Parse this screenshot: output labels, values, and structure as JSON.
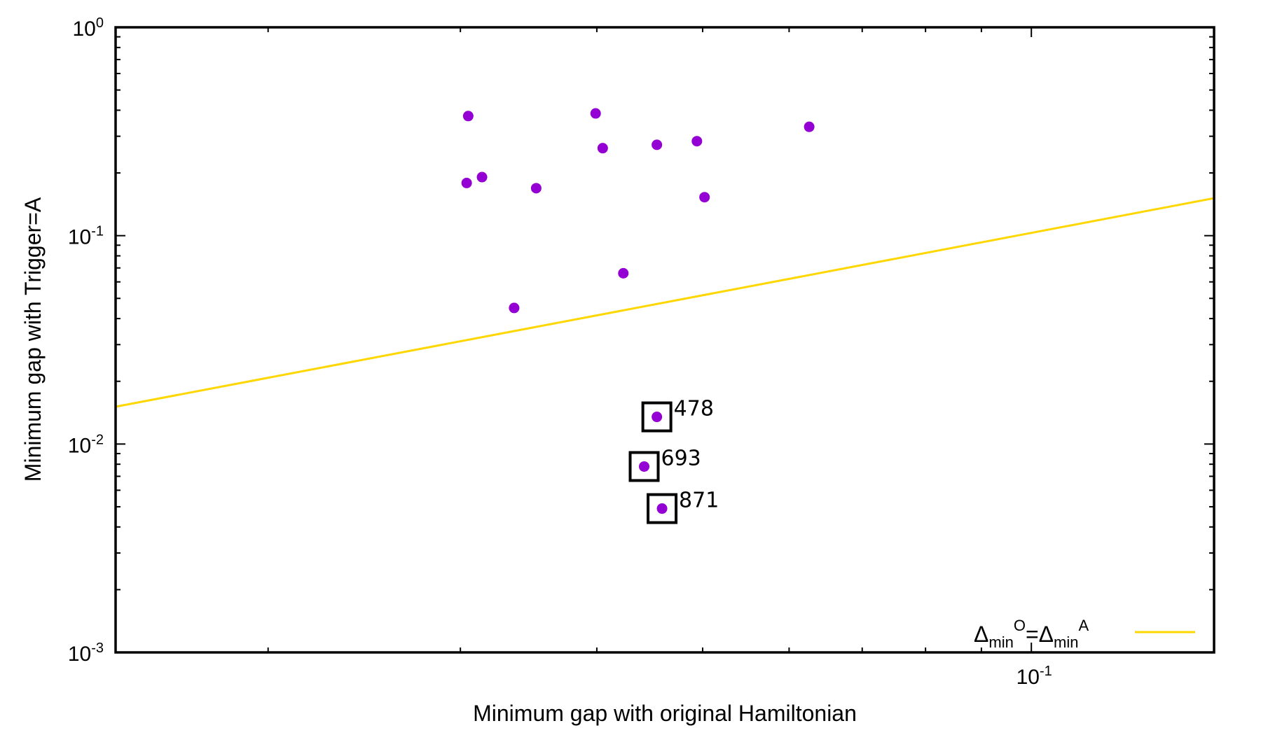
{
  "chart_data": {
    "type": "scatter",
    "xlabel": "Minimum gap with original Hamiltonian",
    "ylabel": "Minimum gap with Trigger=A",
    "x_scale": "log",
    "y_scale": "log",
    "xlim": [
      0.0145,
      0.147
    ],
    "ylim": [
      0.001,
      1
    ],
    "grid": false,
    "legend_placement": "bottom-right",
    "colors": {
      "points": "#9400D3",
      "line": "#FFD700",
      "frame": "#000000"
    },
    "x_ticks": [
      {
        "base": "10",
        "exp": "-1",
        "value": 0.1
      }
    ],
    "y_ticks": [
      {
        "base": "10",
        "exp": "0",
        "value": 1
      },
      {
        "base": "10",
        "exp": "-1",
        "value": 0.1
      },
      {
        "base": "10",
        "exp": "-2",
        "value": 0.01
      },
      {
        "base": "10",
        "exp": "-3",
        "value": 0.001
      }
    ],
    "series": [
      {
        "kind": "points",
        "points": [
          {
            "x": 0.0305,
            "y": 0.375
          },
          {
            "x": 0.0304,
            "y": 0.179
          },
          {
            "x": 0.0314,
            "y": 0.191
          },
          {
            "x": 0.0352,
            "y": 0.169
          },
          {
            "x": 0.0336,
            "y": 0.045
          },
          {
            "x": 0.0399,
            "y": 0.386
          },
          {
            "x": 0.0405,
            "y": 0.263
          },
          {
            "x": 0.0423,
            "y": 0.066
          },
          {
            "x": 0.0454,
            "y": 0.273
          },
          {
            "x": 0.0494,
            "y": 0.284
          },
          {
            "x": 0.0502,
            "y": 0.153
          },
          {
            "x": 0.0626,
            "y": 0.333
          }
        ]
      },
      {
        "kind": "points",
        "boxed": true,
        "points": [
          {
            "x": 0.0454,
            "y": 0.0135,
            "label": "478"
          },
          {
            "x": 0.0442,
            "y": 0.0078,
            "label": "693"
          },
          {
            "x": 0.0459,
            "y": 0.0049,
            "label": "871"
          }
        ]
      },
      {
        "kind": "line",
        "name": "Δ_min^O=Δ_min^A",
        "legend": {
          "d1": "Δ",
          "s1": "min",
          "p1": "O",
          "eq": "=Δ",
          "s2": "min",
          "p2": "A"
        },
        "x": [
          0.0145,
          0.147
        ],
        "y": [
          0.0151,
          0.1513
        ]
      }
    ]
  }
}
